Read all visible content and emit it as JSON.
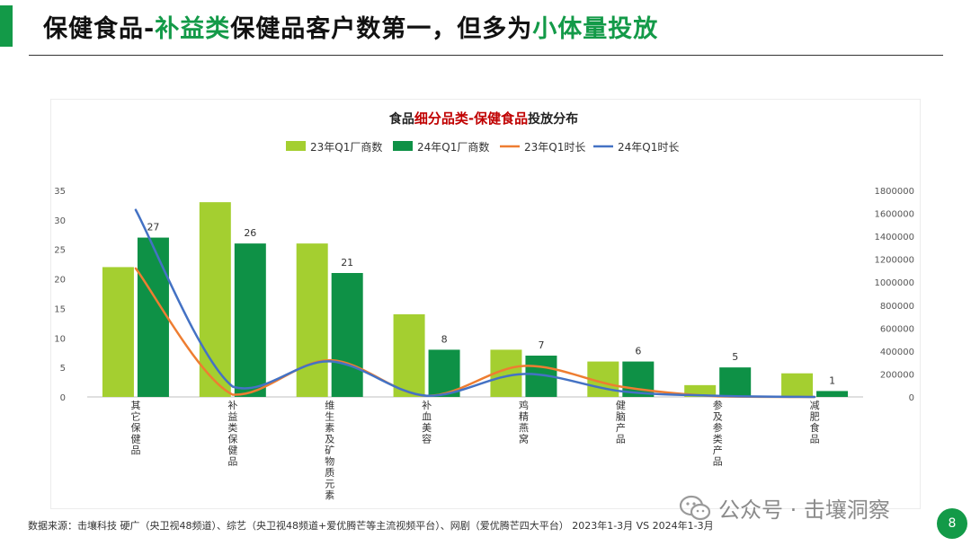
{
  "header": {
    "title_part1": "保健食品-",
    "title_part2": "补益类",
    "title_part3": "保健品客户数第一，但多为",
    "title_part4": "小体量投放",
    "accent_color": "#139a48"
  },
  "chart_data": {
    "type": "bar",
    "title_part1": "食品",
    "title_part2": "细分品类-保健食品",
    "title_part3": "投放分布",
    "categories": [
      "其它保健品",
      "补益类保健品",
      "维生素及矿物质元素",
      "补血美容",
      "鸡精燕窝",
      "健脑产品",
      "参及参类产品",
      "减肥食品"
    ],
    "series": [
      {
        "name": "23年Q1厂商数",
        "type": "bar",
        "axis": "left",
        "color": "#a4cf30",
        "values": [
          22,
          33,
          26,
          14,
          8,
          6,
          2,
          4
        ]
      },
      {
        "name": "24年Q1厂商数",
        "type": "bar",
        "axis": "left",
        "color": "#0e9146",
        "values": [
          27,
          26,
          21,
          8,
          7,
          6,
          5,
          1
        ]
      },
      {
        "name": "23年Q1时长",
        "type": "line",
        "axis": "right",
        "color": "#ee7d31",
        "values": [
          1120000,
          20000,
          320000,
          10000,
          270000,
          90000,
          5000,
          0
        ]
      },
      {
        "name": "24年Q1时长",
        "type": "line",
        "axis": "right",
        "color": "#4472c4",
        "values": [
          1630000,
          90000,
          310000,
          10000,
          200000,
          50000,
          10000,
          0
        ]
      }
    ],
    "data_labels": [
      "27",
      "26",
      "21",
      "8",
      "7",
      "6",
      "5",
      "1"
    ],
    "y_left": {
      "min": 0,
      "max": 35,
      "ticks": [
        "0",
        "5",
        "10",
        "15",
        "20",
        "25",
        "30",
        "35"
      ]
    },
    "y_right": {
      "min": 0,
      "max": 1800000,
      "ticks": [
        "0",
        "200000",
        "400000",
        "600000",
        "800000",
        "1000000",
        "1200000",
        "1400000",
        "1600000",
        "1800000"
      ]
    },
    "legend_position": "top",
    "grid": false
  },
  "footer": {
    "source": "数据来源：击壤科技 硬广（央卫视48频道）、综艺（央卫视48频道+爱优腾芒等主流视频平台）、网剧（爱优腾芒四大平台） 2023年1-3月 VS 2024年1-3月",
    "watermark": "公众号 · 击壤洞察",
    "page_number": "8"
  }
}
